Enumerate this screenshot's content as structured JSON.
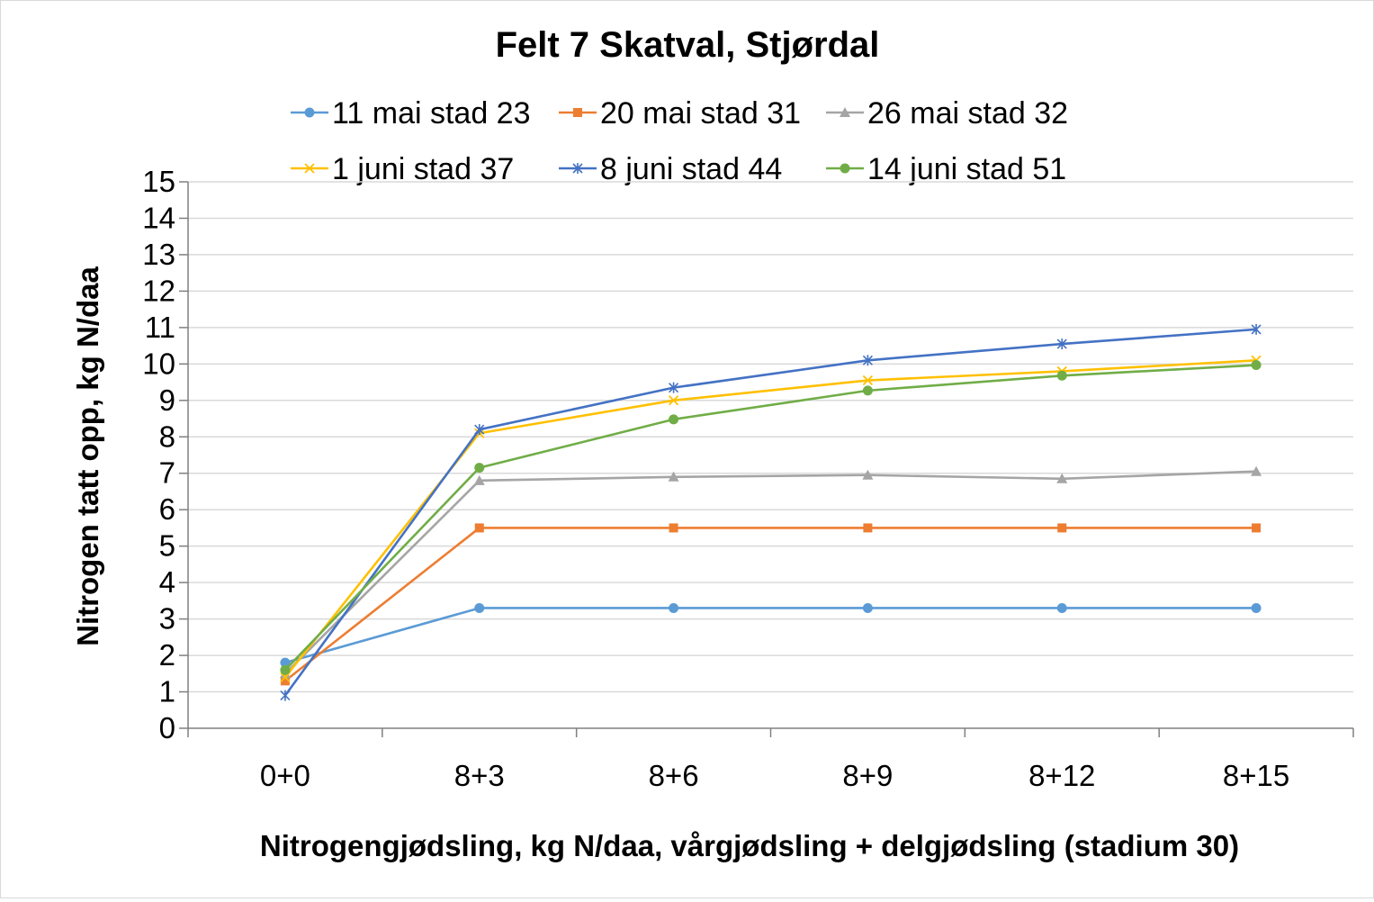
{
  "chart_data": {
    "type": "line",
    "title": "Felt 7 Skatval, Stjørdal",
    "xlabel": "Nitrogengjødsling, kg N/daa, vårgjødsling + delgjødsling (stadium 30)",
    "ylabel": "Nitrogen tatt opp, kg N/daa",
    "categories": [
      "0+0",
      "8+3",
      "8+6",
      "8+9",
      "8+12",
      "8+15"
    ],
    "ylim": [
      0,
      15
    ],
    "yticks": [
      0,
      1,
      2,
      3,
      4,
      5,
      6,
      7,
      8,
      9,
      10,
      11,
      12,
      13,
      14,
      15
    ],
    "grid": true,
    "legend": "top",
    "series": [
      {
        "name": "11 mai stad 23",
        "color": "#5b9bd5",
        "marker": "circle",
        "values": [
          1.8,
          3.3,
          3.3,
          3.3,
          3.3,
          3.3
        ]
      },
      {
        "name": "20 mai stad 31",
        "color": "#ed7d31",
        "marker": "square",
        "values": [
          1.3,
          5.5,
          5.5,
          5.5,
          5.5,
          5.5
        ]
      },
      {
        "name": "26 mai stad 32",
        "color": "#a5a5a5",
        "marker": "triangle",
        "values": [
          1.5,
          6.8,
          6.9,
          6.95,
          6.85,
          7.05
        ]
      },
      {
        "name": "1 juni stad 37",
        "color": "#ffc000",
        "marker": "x",
        "values": [
          1.4,
          8.1,
          9.0,
          9.55,
          9.8,
          10.1
        ]
      },
      {
        "name": "8 juni stad 44",
        "color": "#4472c4",
        "marker": "star",
        "values": [
          0.9,
          8.2,
          9.35,
          10.1,
          10.55,
          10.95
        ]
      },
      {
        "name": "14 juni stad 51",
        "color": "#70ad47",
        "marker": "circle",
        "values": [
          1.6,
          7.15,
          8.48,
          9.27,
          9.68,
          9.97
        ]
      }
    ]
  }
}
